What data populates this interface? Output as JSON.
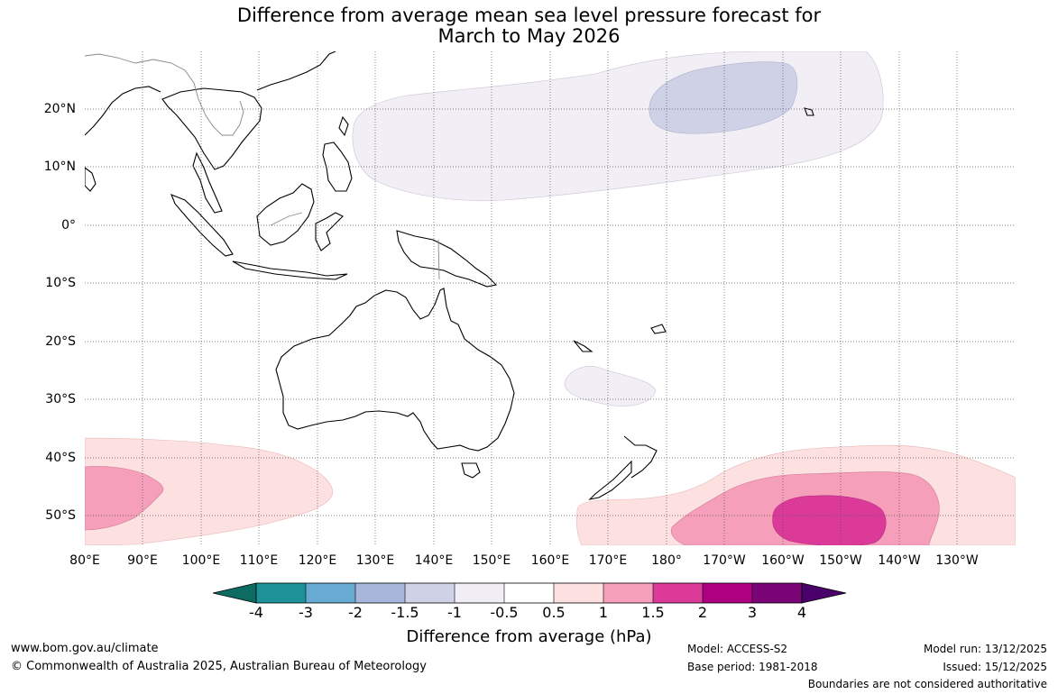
{
  "title": {
    "line1": "Difference from average mean sea level pressure forecast for",
    "line2": "March to May 2026"
  },
  "axes": {
    "lat_labels": [
      "20°N",
      "10°N",
      "0°",
      "10°S",
      "20°S",
      "30°S",
      "40°S",
      "50°S"
    ],
    "lon_labels": [
      "80°E",
      "90°E",
      "100°E",
      "110°E",
      "120°E",
      "130°E",
      "140°E",
      "150°E",
      "160°E",
      "170°E",
      "180°",
      "170°W",
      "160°W",
      "150°W",
      "140°W",
      "130°W"
    ],
    "lat_range": [
      "30°N",
      "55°S"
    ],
    "lon_range": [
      "80°E",
      "120°W"
    ]
  },
  "colorbar": {
    "title": "Difference from average (hPa)",
    "tick_labels": [
      "-4",
      "-3",
      "-2",
      "-1.5",
      "-1",
      "-0.5",
      "0.5",
      "1",
      "1.5",
      "2",
      "3",
      "4"
    ],
    "colors": [
      "#0e6b62",
      "#1c9198",
      "#69aad2",
      "#a7b7db",
      "#cfd1e6",
      "#f2eef5",
      "#ffffff",
      "#fde0e0",
      "#f59fbb",
      "#db3a99",
      "#ae0180",
      "#7b0477",
      "#49006a"
    ],
    "extend": "both"
  },
  "regions": [
    {
      "name": "north-pacific-anomaly",
      "range_hPa": "-1 to -0.5",
      "color": "#f2eef5"
    },
    {
      "name": "hawaii-low-core",
      "range_hPa": "-1.5 to -1",
      "color": "#cfd1e6"
    },
    {
      "name": "tasman-sea-patch",
      "range_hPa": "-1 to -0.5",
      "color": "#f2eef5"
    },
    {
      "name": "southern-indian-high",
      "range_hPa": "0.5 to 1.5",
      "color": "#fde0e0"
    },
    {
      "name": "south-pacific-high",
      "range_hPa": "0.5 to 2",
      "color": "#db3a99"
    }
  ],
  "footer": {
    "website": "www.bom.gov.au/climate",
    "copyright": "© Commonwealth of Australia 2025, Australian Bureau of Meteorology",
    "model": "Model: ACCESS-S2",
    "base_period": "Base period: 1981-2018",
    "model_run": "Model run: 13/12/2025",
    "issued": "Issued: 15/12/2025",
    "disclaimer": "Boundaries are not considered authoritative"
  }
}
